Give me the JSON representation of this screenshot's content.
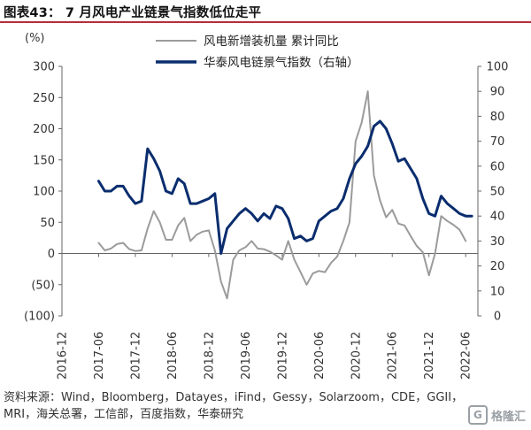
{
  "header": {
    "title": "图表43： 7 月风电产业链景气指数低位走平"
  },
  "source": "资料来源：Wind，Bloomberg，Datayes，iFind，Gessy，Solarzoom，CDE，GGII，MRI，海关总署，工信部，百度指数，华泰研究",
  "watermark": {
    "text": "格隆汇",
    "logo": "G"
  },
  "chart_data": {
    "type": "line",
    "left_axis": {
      "unit_label": "(%)",
      "ylim": [
        -100,
        300
      ],
      "ticks": [
        300,
        250,
        200,
        150,
        100,
        50,
        0,
        -50,
        -100
      ],
      "tick_labels": [
        "300",
        "250",
        "200",
        "150",
        "100",
        "50",
        "0",
        "(50)",
        "(100)"
      ]
    },
    "right_axis": {
      "ylim": [
        0,
        100
      ],
      "ticks": [
        100,
        90,
        80,
        70,
        60,
        50,
        40,
        30,
        20,
        10,
        0
      ],
      "tick_labels": [
        "100",
        "90",
        "80",
        "70",
        "60",
        "50",
        "40",
        "30",
        "20",
        "10",
        "0"
      ]
    },
    "x_axis": {
      "start": "2016-12",
      "end": "2022-08",
      "tick_labels": [
        "2016-12",
        "2017-06",
        "2017-12",
        "2018-06",
        "2018-12",
        "2019-06",
        "2019-12",
        "2020-06",
        "2020-12",
        "2021-06",
        "2021-12",
        "2022-06"
      ]
    },
    "legend_position": "top",
    "grid": false,
    "colors": {
      "wind": "#9b9b9b",
      "index": "#0a2d6e"
    },
    "series": [
      {
        "name": "风电新增装机量 累计同比",
        "axis": "left",
        "values": [
          [
            "2017-06",
            17
          ],
          [
            "2017-07",
            5
          ],
          [
            "2017-08",
            8
          ],
          [
            "2017-09",
            15
          ],
          [
            "2017-10",
            17
          ],
          [
            "2017-11",
            7
          ],
          [
            "2017-12",
            4
          ],
          [
            "2018-01",
            5
          ],
          [
            "2018-02",
            40
          ],
          [
            "2018-03",
            68
          ],
          [
            "2018-04",
            50
          ],
          [
            "2018-05",
            22
          ],
          [
            "2018-06",
            22
          ],
          [
            "2018-07",
            45
          ],
          [
            "2018-08",
            57
          ],
          [
            "2018-09",
            20
          ],
          [
            "2018-10",
            30
          ],
          [
            "2018-11",
            35
          ],
          [
            "2018-12",
            37
          ],
          [
            "2019-01",
            5
          ],
          [
            "2019-02",
            -45
          ],
          [
            "2019-03",
            -72
          ],
          [
            "2019-04",
            -10
          ],
          [
            "2019-05",
            5
          ],
          [
            "2019-06",
            10
          ],
          [
            "2019-07",
            20
          ],
          [
            "2019-08",
            8
          ],
          [
            "2019-09",
            7
          ],
          [
            "2019-10",
            3
          ],
          [
            "2019-11",
            -3
          ],
          [
            "2019-12",
            -10
          ],
          [
            "2020-01",
            20
          ],
          [
            "2020-02",
            -10
          ],
          [
            "2020-03",
            -30
          ],
          [
            "2020-04",
            -50
          ],
          [
            "2020-05",
            -32
          ],
          [
            "2020-06",
            -28
          ],
          [
            "2020-07",
            -30
          ],
          [
            "2020-08",
            -15
          ],
          [
            "2020-09",
            -5
          ],
          [
            "2020-10",
            20
          ],
          [
            "2020-11",
            50
          ],
          [
            "2020-12",
            180
          ],
          [
            "2021-01",
            210
          ],
          [
            "2021-02",
            260
          ],
          [
            "2021-03",
            125
          ],
          [
            "2021-04",
            85
          ],
          [
            "2021-05",
            58
          ],
          [
            "2021-06",
            70
          ],
          [
            "2021-07",
            48
          ],
          [
            "2021-08",
            45
          ],
          [
            "2021-09",
            28
          ],
          [
            "2021-10",
            12
          ],
          [
            "2021-11",
            2
          ],
          [
            "2021-12",
            -35
          ],
          [
            "2022-01",
            0
          ],
          [
            "2022-02",
            60
          ],
          [
            "2022-03",
            52
          ],
          [
            "2022-04",
            46
          ],
          [
            "2022-05",
            38
          ],
          [
            "2022-06",
            20
          ]
        ]
      },
      {
        "name": "华泰风电链景气指数（右轴）",
        "axis": "right",
        "values": [
          [
            "2017-06",
            54
          ],
          [
            "2017-07",
            50
          ],
          [
            "2017-08",
            50
          ],
          [
            "2017-09",
            52
          ],
          [
            "2017-10",
            52
          ],
          [
            "2017-11",
            48
          ],
          [
            "2017-12",
            45
          ],
          [
            "2018-01",
            46
          ],
          [
            "2018-02",
            67
          ],
          [
            "2018-03",
            63
          ],
          [
            "2018-04",
            58
          ],
          [
            "2018-05",
            50
          ],
          [
            "2018-06",
            49
          ],
          [
            "2018-07",
            55
          ],
          [
            "2018-08",
            53
          ],
          [
            "2018-09",
            45
          ],
          [
            "2018-10",
            45
          ],
          [
            "2018-11",
            46
          ],
          [
            "2018-12",
            47
          ],
          [
            "2019-01",
            49
          ],
          [
            "2019-02",
            25
          ],
          [
            "2019-03",
            35
          ],
          [
            "2019-04",
            38
          ],
          [
            "2019-05",
            41
          ],
          [
            "2019-06",
            43
          ],
          [
            "2019-07",
            41
          ],
          [
            "2019-08",
            38
          ],
          [
            "2019-09",
            41
          ],
          [
            "2019-10",
            39
          ],
          [
            "2019-11",
            44
          ],
          [
            "2019-12",
            43
          ],
          [
            "2020-01",
            39
          ],
          [
            "2020-02",
            31
          ],
          [
            "2020-03",
            32
          ],
          [
            "2020-04",
            30
          ],
          [
            "2020-05",
            31
          ],
          [
            "2020-06",
            38
          ],
          [
            "2020-07",
            40
          ],
          [
            "2020-08",
            42
          ],
          [
            "2020-09",
            43
          ],
          [
            "2020-10",
            47
          ],
          [
            "2020-11",
            55
          ],
          [
            "2020-12",
            61
          ],
          [
            "2021-01",
            64
          ],
          [
            "2021-02",
            68
          ],
          [
            "2021-03",
            76
          ],
          [
            "2021-04",
            78
          ],
          [
            "2021-05",
            75
          ],
          [
            "2021-06",
            69
          ],
          [
            "2021-07",
            62
          ],
          [
            "2021-08",
            63
          ],
          [
            "2021-09",
            59
          ],
          [
            "2021-10",
            55
          ],
          [
            "2021-11",
            47
          ],
          [
            "2021-12",
            41
          ],
          [
            "2022-01",
            40
          ],
          [
            "2022-02",
            48
          ],
          [
            "2022-03",
            45
          ],
          [
            "2022-04",
            43
          ],
          [
            "2022-05",
            41
          ],
          [
            "2022-06",
            40
          ],
          [
            "2022-07",
            40
          ]
        ]
      }
    ]
  }
}
